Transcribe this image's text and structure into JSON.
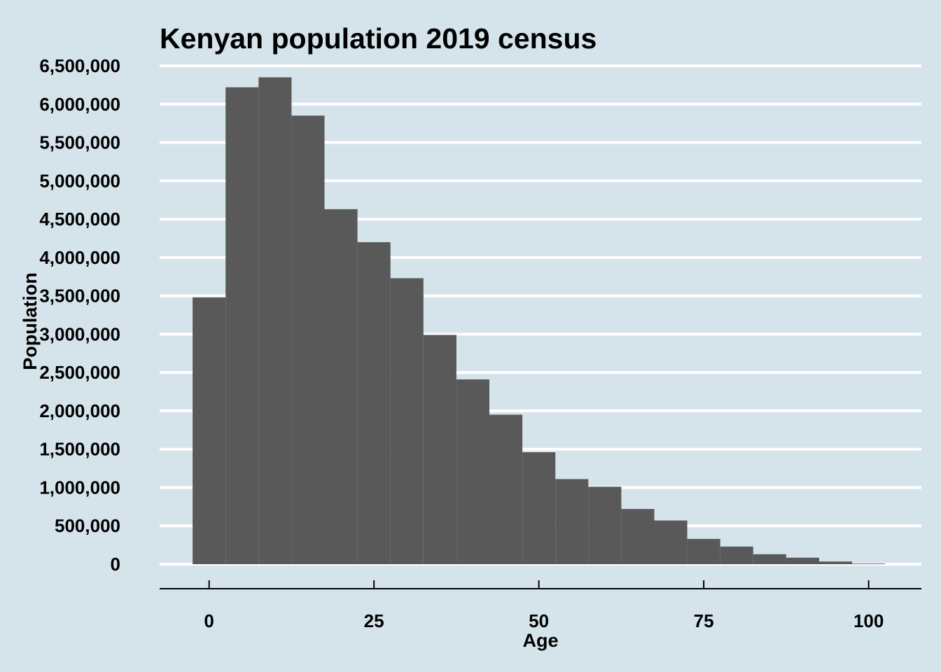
{
  "chart_data": {
    "type": "bar",
    "title": "Kenyan population 2019 census",
    "xlabel": "Age",
    "ylabel": "Population",
    "bin_width": 5,
    "bins": [
      {
        "start": -2.5,
        "end": 2.5,
        "value": 3480000
      },
      {
        "start": 2.5,
        "end": 7.5,
        "value": 6220000
      },
      {
        "start": 7.5,
        "end": 12.5,
        "value": 6350000
      },
      {
        "start": 12.5,
        "end": 17.5,
        "value": 5850000
      },
      {
        "start": 17.5,
        "end": 22.5,
        "value": 4630000
      },
      {
        "start": 22.5,
        "end": 27.5,
        "value": 4200000
      },
      {
        "start": 27.5,
        "end": 32.5,
        "value": 3730000
      },
      {
        "start": 32.5,
        "end": 37.5,
        "value": 2990000
      },
      {
        "start": 37.5,
        "end": 42.5,
        "value": 2410000
      },
      {
        "start": 42.5,
        "end": 47.5,
        "value": 1950000
      },
      {
        "start": 47.5,
        "end": 52.5,
        "value": 1460000
      },
      {
        "start": 52.5,
        "end": 57.5,
        "value": 1110000
      },
      {
        "start": 57.5,
        "end": 62.5,
        "value": 1010000
      },
      {
        "start": 62.5,
        "end": 67.5,
        "value": 720000
      },
      {
        "start": 67.5,
        "end": 72.5,
        "value": 570000
      },
      {
        "start": 72.5,
        "end": 77.5,
        "value": 330000
      },
      {
        "start": 77.5,
        "end": 82.5,
        "value": 230000
      },
      {
        "start": 82.5,
        "end": 87.5,
        "value": 130000
      },
      {
        "start": 87.5,
        "end": 92.5,
        "value": 85000
      },
      {
        "start": 92.5,
        "end": 97.5,
        "value": 35000
      },
      {
        "start": 97.5,
        "end": 102.5,
        "value": 8000
      }
    ],
    "xlim": [
      -7.5,
      108
    ],
    "ylim": [
      0,
      6500000
    ],
    "x_ticks": [
      0,
      25,
      50,
      75,
      100
    ],
    "x_tick_labels": [
      "0",
      "25",
      "50",
      "75",
      "100"
    ],
    "y_ticks": [
      0,
      500000,
      1000000,
      1500000,
      2000000,
      2500000,
      3000000,
      3500000,
      4000000,
      4500000,
      5000000,
      5500000,
      6000000,
      6500000
    ],
    "y_tick_labels": [
      "0",
      "500,000",
      "1,000,000",
      "1,500,000",
      "2,000,000",
      "2,500,000",
      "3,000,000",
      "3,500,000",
      "4,000,000",
      "4,500,000",
      "5,000,000",
      "5,500,000",
      "6,000,000",
      "6,500,000"
    ],
    "grid": "horizontal",
    "colors": {
      "background": "#d5e4eb",
      "bar": "#595959",
      "grid": "#ffffff",
      "text": "#000000"
    }
  }
}
